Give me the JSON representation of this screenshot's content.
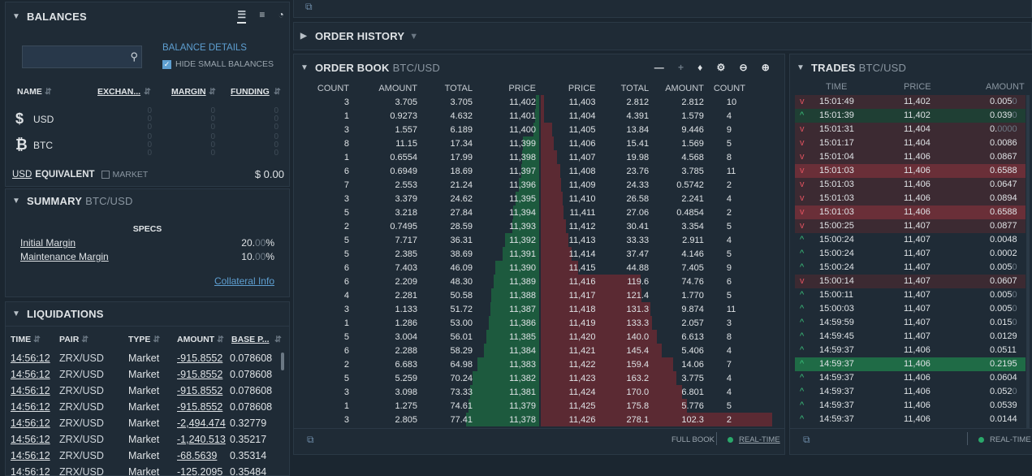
{
  "balances": {
    "title": "BALANCES",
    "details_label": "BALANCE DETAILS",
    "hide_small_label": "HIDE SMALL BALANCES",
    "hide_small_checked": true,
    "columns": [
      "NAME",
      "EXCHAN...",
      "MARGIN",
      "FUNDING"
    ],
    "rows": [
      {
        "symbol": "$",
        "name": "USD",
        "exchange": [
          "0",
          "0",
          "0"
        ],
        "margin": [
          "0",
          "0",
          "0"
        ],
        "funding": [
          "0",
          "0",
          "0"
        ]
      },
      {
        "symbol": "₿",
        "name": "BTC",
        "exchange": [
          "0",
          "0",
          "0"
        ],
        "margin": [
          "0",
          "0",
          "0"
        ],
        "funding": [
          "0",
          "0",
          "0"
        ]
      }
    ],
    "equiv_currency": "USD",
    "equiv_label": "EQUIVALENT",
    "market_label": "MARKET",
    "total": "$ 0.00"
  },
  "summary": {
    "title": "SUMMARY",
    "pair": "BTC/USD",
    "specs_label": "SPECS",
    "initial_margin_label": "Initial Margin",
    "initial_margin_value": "20.",
    "initial_margin_dim": "00",
    "maintenance_margin_label": "Maintenance Margin",
    "maintenance_margin_value": "10.",
    "maintenance_margin_dim": "00",
    "percent": "%",
    "collateral_link": "Collateral Info"
  },
  "liquidations": {
    "title": "LIQUIDATIONS",
    "columns": [
      "TIME",
      "PAIR",
      "TYPE",
      "AMOUNT",
      "BASE P..."
    ],
    "rows": [
      [
        "14:56:12",
        "ZRX/USD",
        "Market",
        "-915.8552",
        "0.078608"
      ],
      [
        "14:56:12",
        "ZRX/USD",
        "Market",
        "-915.8552",
        "0.078608"
      ],
      [
        "14:56:12",
        "ZRX/USD",
        "Market",
        "-915.8552",
        "0.078608"
      ],
      [
        "14:56:12",
        "ZRX/USD",
        "Market",
        "-915.8552",
        "0.078608"
      ],
      [
        "14:56:12",
        "ZRX/USD",
        "Market",
        "-2,494.474",
        "0.32779"
      ],
      [
        "14:56:12",
        "ZRX/USD",
        "Market",
        "-1,240.513",
        "0.35217"
      ],
      [
        "14:56:12",
        "ZRX/USD",
        "Market",
        "-68.5639",
        "0.35314"
      ],
      [
        "14:56:12",
        "ZRX/USD",
        "Market",
        "-125.2095",
        "0.35484"
      ]
    ]
  },
  "order_history": {
    "title": "ORDER HISTORY"
  },
  "order_book": {
    "title": "ORDER BOOK",
    "pair": "BTC/USD",
    "bid_columns": [
      "COUNT",
      "AMOUNT",
      "TOTAL",
      "PRICE"
    ],
    "ask_columns": [
      "PRICE",
      "TOTAL",
      "AMOUNT",
      "COUNT"
    ],
    "bids": [
      [
        "3",
        "3.705",
        "3.705",
        "11,402"
      ],
      [
        "1",
        "0.9273",
        "4.632",
        "11,401"
      ],
      [
        "3",
        "1.557",
        "6.189",
        "11,400"
      ],
      [
        "8",
        "11.15",
        "17.34",
        "11,399"
      ],
      [
        "1",
        "0.6554",
        "17.99",
        "11,398"
      ],
      [
        "6",
        "0.6949",
        "18.69",
        "11,397"
      ],
      [
        "7",
        "2.553",
        "21.24",
        "11,396"
      ],
      [
        "3",
        "3.379",
        "24.62",
        "11,395"
      ],
      [
        "5",
        "3.218",
        "27.84",
        "11,394"
      ],
      [
        "2",
        "0.7495",
        "28.59",
        "11,393"
      ],
      [
        "5",
        "7.717",
        "36.31",
        "11,392"
      ],
      [
        "5",
        "2.385",
        "38.69",
        "11,391"
      ],
      [
        "6",
        "7.403",
        "46.09",
        "11,390"
      ],
      [
        "6",
        "2.209",
        "48.30",
        "11,389"
      ],
      [
        "4",
        "2.281",
        "50.58",
        "11,388"
      ],
      [
        "3",
        "1.133",
        "51.72",
        "11,387"
      ],
      [
        "1",
        "1.286",
        "53.00",
        "11,386"
      ],
      [
        "5",
        "3.004",
        "56.01",
        "11,385"
      ],
      [
        "6",
        "2.288",
        "58.29",
        "11,384"
      ],
      [
        "2",
        "6.683",
        "64.98",
        "11,383"
      ],
      [
        "5",
        "5.259",
        "70.24",
        "11,382"
      ],
      [
        "3",
        "3.098",
        "73.33",
        "11,381"
      ],
      [
        "1",
        "1.275",
        "74.61",
        "11,379"
      ],
      [
        "3",
        "2.805",
        "77.41",
        "11,378"
      ]
    ],
    "asks": [
      [
        "11,403",
        "2.812",
        "2.812",
        "10"
      ],
      [
        "11,404",
        "4.391",
        "1.579",
        "4"
      ],
      [
        "11,405",
        "13.84",
        "9.446",
        "9"
      ],
      [
        "11,406",
        "15.41",
        "1.569",
        "5"
      ],
      [
        "11,407",
        "19.98",
        "4.568",
        "8"
      ],
      [
        "11,408",
        "23.76",
        "3.785",
        "11"
      ],
      [
        "11,409",
        "24.33",
        "0.5742",
        "2"
      ],
      [
        "11,410",
        "26.58",
        "2.241",
        "4"
      ],
      [
        "11,411",
        "27.06",
        "0.4854",
        "2"
      ],
      [
        "11,412",
        "30.41",
        "3.354",
        "5"
      ],
      [
        "11,413",
        "33.33",
        "2.911",
        "4"
      ],
      [
        "11,414",
        "37.47",
        "4.146",
        "5"
      ],
      [
        "11,415",
        "44.88",
        "7.405",
        "9"
      ],
      [
        "11,416",
        "119.6",
        "74.76",
        "6"
      ],
      [
        "11,417",
        "121.4",
        "1.770",
        "5"
      ],
      [
        "11,418",
        "131.3",
        "9.874",
        "11"
      ],
      [
        "11,419",
        "133.3",
        "2.057",
        "3"
      ],
      [
        "11,420",
        "140.0",
        "6.613",
        "8"
      ],
      [
        "11,421",
        "145.4",
        "5.406",
        "4"
      ],
      [
        "11,422",
        "159.4",
        "14.06",
        "7"
      ],
      [
        "11,423",
        "163.2",
        "3.775",
        "4"
      ],
      [
        "11,424",
        "170.0",
        "6.801",
        "4"
      ],
      [
        "11,425",
        "175.8",
        "5.776",
        "5"
      ],
      [
        "11,426",
        "278.1",
        "102.3",
        "2"
      ]
    ],
    "full_book_label": "FULL BOOK",
    "realtime_label": "REAL-TIME"
  },
  "trades": {
    "title": "TRADES",
    "pair": "BTC/USD",
    "columns": [
      "TIME",
      "PRICE",
      "AMOUNT"
    ],
    "rows": [
      [
        "down",
        "15:01:49",
        "11,402",
        "0.005",
        "0",
        ""
      ],
      [
        "up",
        "15:01:39",
        "11,402",
        "0.039",
        "0",
        ""
      ],
      [
        "down",
        "15:01:31",
        "11,404",
        "0.",
        "0000",
        ""
      ],
      [
        "down",
        "15:01:17",
        "11,404",
        "0.0086",
        "",
        ""
      ],
      [
        "down",
        "15:01:04",
        "11,406",
        "0.0867",
        "",
        ""
      ],
      [
        "down",
        "15:01:03",
        "11,406",
        "0.6588",
        "",
        "strong"
      ],
      [
        "down",
        "15:01:03",
        "11,406",
        "0.0647",
        "",
        ""
      ],
      [
        "down",
        "15:01:03",
        "11,406",
        "0.0894",
        "",
        ""
      ],
      [
        "down",
        "15:01:03",
        "11,406",
        "0.6588",
        "",
        "strong"
      ],
      [
        "down",
        "15:00:25",
        "11,407",
        "0.0877",
        "",
        ""
      ],
      [
        "up",
        "15:00:24",
        "11,407",
        "0.0048",
        "",
        ""
      ],
      [
        "up",
        "15:00:24",
        "11,407",
        "0.0002",
        "",
        ""
      ],
      [
        "up",
        "15:00:24",
        "11,407",
        "0.005",
        "0",
        ""
      ],
      [
        "down",
        "15:00:14",
        "11,407",
        "0.0607",
        "",
        ""
      ],
      [
        "up",
        "15:00:11",
        "11,407",
        "0.005",
        "0",
        ""
      ],
      [
        "up",
        "15:00:03",
        "11,407",
        "0.005",
        "0",
        ""
      ],
      [
        "up",
        "14:59:59",
        "11,407",
        "0.015",
        "0",
        ""
      ],
      [
        "up",
        "14:59:45",
        "11,407",
        "0.0129",
        "",
        ""
      ],
      [
        "up",
        "14:59:37",
        "11,406",
        "0.0511",
        "",
        ""
      ],
      [
        "up",
        "14:59:37",
        "11,406",
        "0.2195",
        "",
        "strong"
      ],
      [
        "up",
        "14:59:37",
        "11,406",
        "0.0604",
        "",
        ""
      ],
      [
        "up",
        "14:59:37",
        "11,406",
        "0.052",
        "0",
        ""
      ],
      [
        "up",
        "14:59:37",
        "11,406",
        "0.0539",
        "",
        ""
      ],
      [
        "up",
        "14:59:37",
        "11,406",
        "0.0144",
        "",
        ""
      ]
    ],
    "realtime_label": "REAL-TIME"
  },
  "colors": {
    "bid": "#1d5a3e",
    "ask": "#5b2a33",
    "accent": "#5e9fd1"
  }
}
